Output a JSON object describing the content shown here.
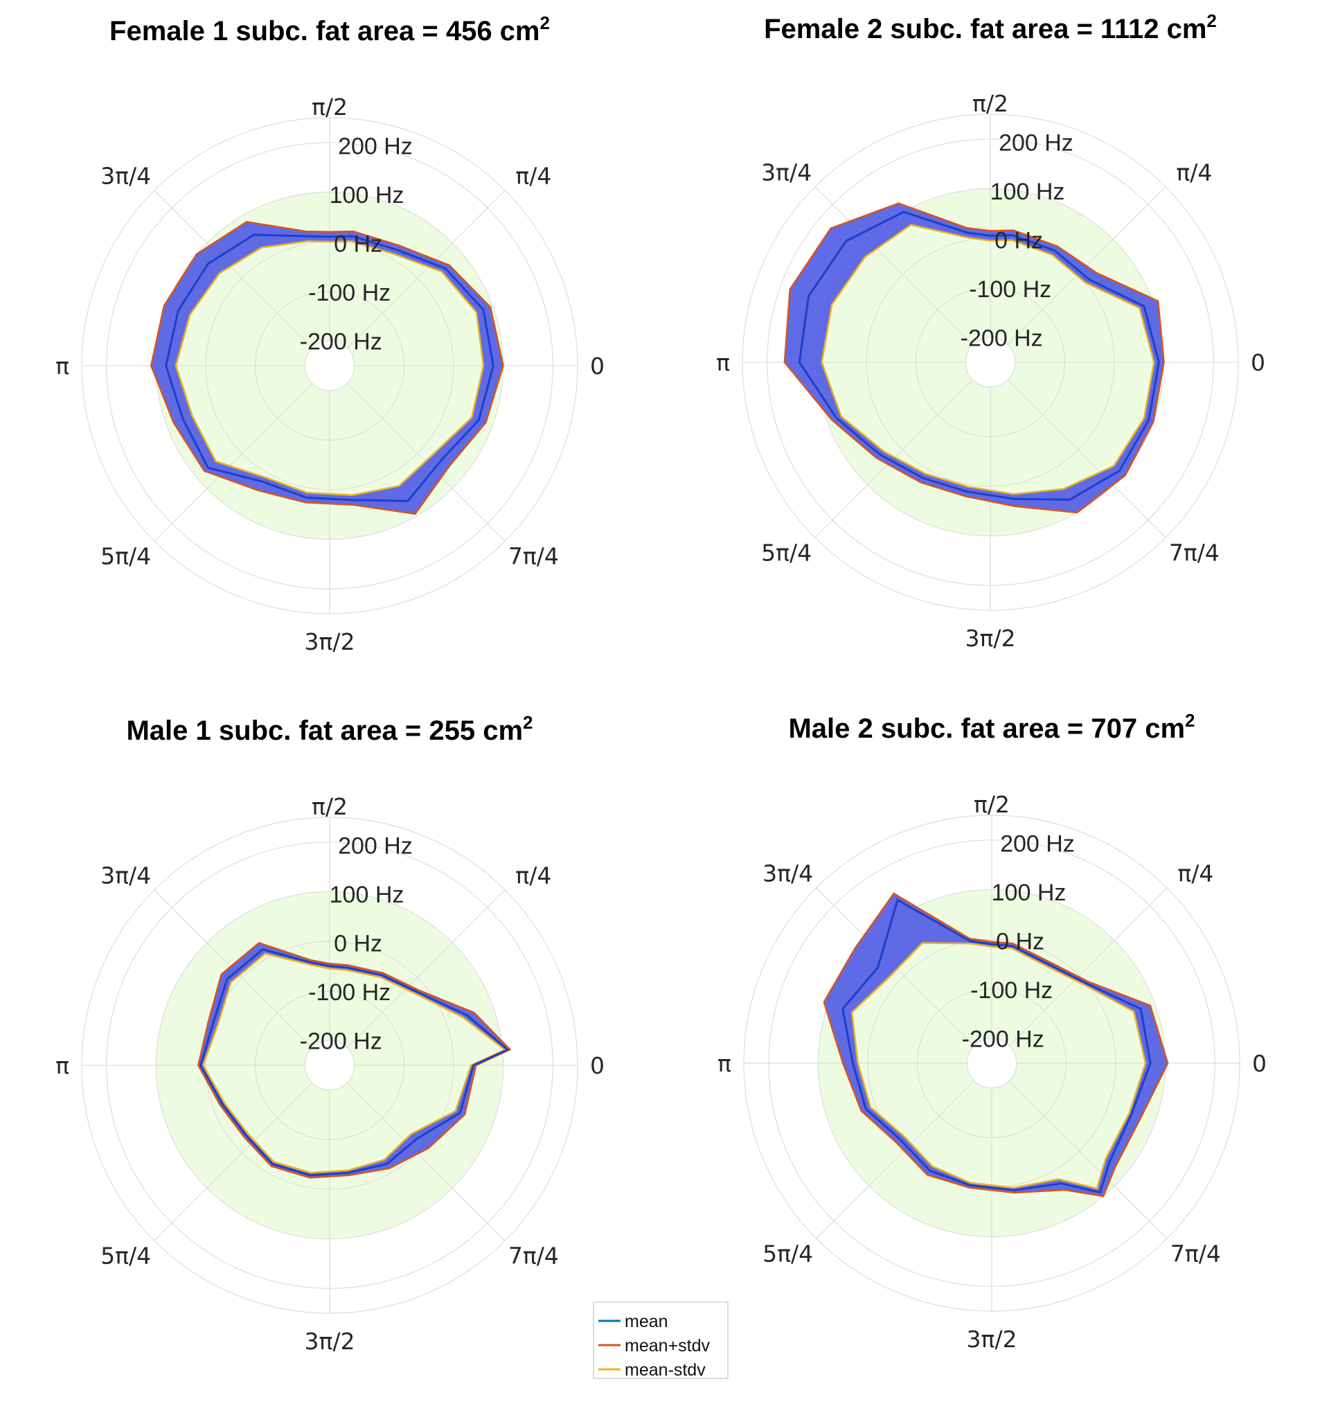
{
  "chart_data": [
    {
      "type": "polar-area",
      "title": "Female 1 subc. fat area = 456 cm",
      "title_sup": "2",
      "angle_ticks": [
        "0",
        "π/4",
        "π/2",
        "3π/4",
        "π",
        "5π/4",
        "3π/2",
        "7π/4"
      ],
      "radial_ticks": [
        "-200 Hz",
        "-100 Hz",
        "0 Hz",
        "100 Hz",
        "200 Hz"
      ],
      "rlim": [
        -250,
        250
      ],
      "shaded_band": [
        -200,
        100
      ],
      "series": [
        {
          "name": "mean",
          "theta_deg": [
            0,
            20,
            40,
            60,
            80,
            90,
            100,
            120,
            140,
            160,
            180,
            200,
            220,
            240,
            260,
            280,
            300,
            320,
            340
          ],
          "r": [
            80,
            80,
            55,
            20,
            15,
            10,
            15,
            55,
            70,
            75,
            80,
            65,
            70,
            20,
            20,
            25,
            65,
            45,
            70
          ]
        },
        {
          "name": "mean+stdv",
          "theta_deg": [
            0,
            20,
            40,
            60,
            80,
            90,
            100,
            120,
            140,
            160,
            180,
            200,
            220,
            240,
            260,
            280,
            300,
            320,
            340
          ],
          "r": [
            100,
            95,
            65,
            30,
            25,
            20,
            25,
            85,
            100,
            105,
            110,
            85,
            80,
            40,
            30,
            35,
            95,
            65,
            85
          ]
        },
        {
          "name": "mean-stdv",
          "theta_deg": [
            0,
            20,
            40,
            60,
            80,
            90,
            100,
            120,
            140,
            160,
            180,
            200,
            220,
            240,
            260,
            280,
            300,
            320,
            340
          ],
          "r": [
            60,
            65,
            45,
            10,
            5,
            0,
            5,
            25,
            40,
            50,
            60,
            45,
            50,
            10,
            10,
            15,
            30,
            25,
            55
          ]
        }
      ]
    },
    {
      "type": "polar-area",
      "title": "Female 2 subc. fat area = 1112 cm",
      "title_sup": "2",
      "angle_ticks": [
        "0",
        "π/4",
        "π/2",
        "3π/4",
        "π",
        "5π/4",
        "3π/2",
        "7π/4"
      ],
      "radial_ticks": [
        "-200 Hz",
        "-100 Hz",
        "0 Hz",
        "100 Hz",
        "200 Hz"
      ],
      "rlim": [
        -250,
        250
      ],
      "shaded_band": [
        -200,
        100
      ],
      "series": [
        {
          "name": "mean",
          "theta_deg": [
            0,
            20,
            40,
            60,
            80,
            90,
            100,
            120,
            140,
            160,
            180,
            200,
            220,
            240,
            260,
            280,
            300,
            320,
            340
          ],
          "r": [
            90,
            80,
            10,
            10,
            10,
            5,
            15,
            100,
            130,
            140,
            135,
            80,
            40,
            20,
            15,
            30,
            70,
            90,
            90
          ]
        },
        {
          "name": "mean+stdv",
          "theta_deg": [
            0,
            20,
            40,
            60,
            80,
            90,
            100,
            120,
            140,
            160,
            180,
            200,
            220,
            240,
            260,
            280,
            300,
            320,
            340
          ],
          "r": [
            100,
            110,
            30,
            20,
            20,
            15,
            25,
            120,
            170,
            180,
            165,
            90,
            50,
            30,
            25,
            45,
            100,
            105,
            100
          ]
        },
        {
          "name": "mean-stdv",
          "theta_deg": [
            0,
            20,
            40,
            60,
            80,
            90,
            100,
            120,
            140,
            160,
            180,
            200,
            220,
            240,
            260,
            280,
            300,
            320,
            340
          ],
          "r": [
            80,
            70,
            0,
            0,
            0,
            -5,
            5,
            70,
            80,
            90,
            90,
            70,
            30,
            10,
            5,
            20,
            45,
            75,
            80
          ]
        }
      ]
    },
    {
      "type": "polar-area",
      "title": "Male 1 subc. fat area = 255 cm",
      "title_sup": "2",
      "angle_ticks": [
        "0",
        "π/4",
        "π/2",
        "3π/4",
        "π",
        "5π/4",
        "3π/2",
        "7π/4"
      ],
      "radial_ticks": [
        "-200 Hz",
        "-100 Hz",
        "0 Hz",
        "100 Hz",
        "200 Hz"
      ],
      "rlim": [
        -250,
        250
      ],
      "shaded_band": [
        -200,
        100
      ],
      "series": [
        {
          "name": "mean",
          "theta_deg": [
            0,
            5,
            20,
            40,
            60,
            80,
            90,
            100,
            120,
            140,
            160,
            180,
            200,
            220,
            240,
            260,
            280,
            300,
            320,
            340
          ],
          "r": [
            40,
            110,
            45,
            -20,
            -40,
            -50,
            -50,
            -40,
            20,
            20,
            0,
            10,
            -20,
            -30,
            -20,
            -25,
            -30,
            -20,
            -20,
            30
          ]
        },
        {
          "name": "mean+stdv",
          "theta_deg": [
            0,
            5,
            20,
            40,
            60,
            80,
            90,
            100,
            120,
            140,
            160,
            180,
            200,
            220,
            240,
            260,
            280,
            300,
            320,
            340
          ],
          "r": [
            45,
            115,
            60,
            -15,
            -35,
            -45,
            -45,
            -35,
            35,
            35,
            10,
            15,
            -15,
            -25,
            -15,
            -20,
            -25,
            -10,
            10,
            40
          ]
        },
        {
          "name": "mean-stdv",
          "theta_deg": [
            0,
            5,
            20,
            40,
            60,
            80,
            90,
            100,
            120,
            140,
            160,
            180,
            200,
            220,
            240,
            260,
            280,
            300,
            320,
            340
          ],
          "r": [
            35,
            105,
            35,
            -25,
            -45,
            -55,
            -55,
            -45,
            10,
            10,
            -10,
            5,
            -25,
            -35,
            -25,
            -30,
            -35,
            -30,
            -35,
            20
          ]
        }
      ]
    },
    {
      "type": "polar-area",
      "title": "Male 2 subc. fat area = 707 cm",
      "title_sup": "2",
      "angle_ticks": [
        "0",
        "π/4",
        "π/2",
        "3π/4",
        "π",
        "5π/4",
        "3π/2",
        "7π/4"
      ],
      "radial_ticks": [
        "-200 Hz",
        "-100 Hz",
        "0 Hz",
        "100 Hz",
        "200 Hz"
      ],
      "rlim": [
        -250,
        250
      ],
      "shaded_band": [
        -200,
        100
      ],
      "series": [
        {
          "name": "mean",
          "theta_deg": [
            0,
            20,
            40,
            60,
            80,
            90,
            100,
            120,
            140,
            160,
            180,
            200,
            220,
            240,
            260,
            280,
            300,
            310,
            320,
            340
          ],
          "r": [
            70,
            70,
            0,
            -20,
            -10,
            -10,
            0,
            130,
            50,
            70,
            30,
            20,
            -10,
            0,
            0,
            10,
            30,
            90,
            60,
            50
          ]
        },
        {
          "name": "mean+stdv",
          "theta_deg": [
            0,
            20,
            40,
            60,
            80,
            90,
            100,
            120,
            140,
            160,
            180,
            200,
            220,
            240,
            260,
            280,
            300,
            310,
            320,
            340
          ],
          "r": [
            105,
            90,
            5,
            -15,
            -5,
            -5,
            5,
            145,
            110,
            110,
            50,
            30,
            0,
            10,
            5,
            15,
            45,
            100,
            75,
            70
          ]
        },
        {
          "name": "mean-stdv",
          "theta_deg": [
            0,
            20,
            40,
            60,
            80,
            90,
            100,
            120,
            140,
            160,
            180,
            200,
            220,
            240,
            260,
            280,
            300,
            310,
            320,
            340
          ],
          "r": [
            60,
            55,
            -5,
            -25,
            -15,
            -15,
            -5,
            30,
            20,
            50,
            20,
            10,
            -20,
            -10,
            -5,
            5,
            20,
            80,
            50,
            45
          ]
        }
      ]
    }
  ],
  "legend": {
    "placement": "bottom-center",
    "items": [
      {
        "label": "mean",
        "color": "#0072BD"
      },
      {
        "label": "mean+stdv",
        "color": "#D95319"
      },
      {
        "label": "mean-stdv",
        "color": "#EDB120"
      }
    ]
  },
  "colors": {
    "band": "#EDFCE0",
    "fill": "#4F5BE6",
    "grid": "#DDDDDD"
  }
}
